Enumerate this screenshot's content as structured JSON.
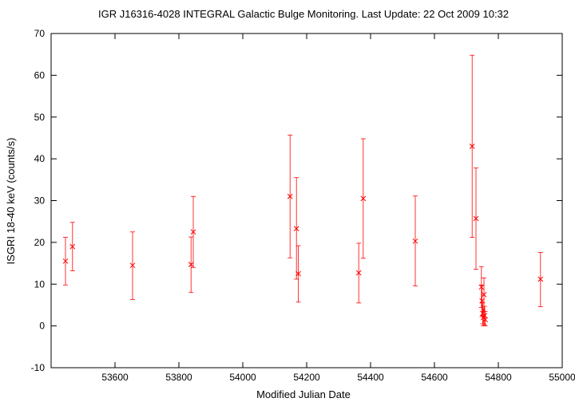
{
  "chart_data": {
    "type": "scatter",
    "title": "IGR J16316-4028   INTEGRAL Galactic Bulge Monitoring.  Last Update: 22 Oct 2009 10:32",
    "xlabel": "Modified Julian Date",
    "ylabel": "ISGRI 18-40 keV (counts/s)",
    "xlim": [
      53400,
      55000
    ],
    "ylim": [
      -10,
      70
    ],
    "xticks": [
      53600,
      53800,
      54000,
      54200,
      54400,
      54600,
      54800,
      55000
    ],
    "yticks": [
      -10,
      0,
      10,
      20,
      30,
      40,
      50,
      60,
      70
    ],
    "grid": false,
    "marker": "x",
    "color": "#ff0000",
    "points": [
      {
        "x": 53445,
        "y": 15.5,
        "ylo": 9.8,
        "yhi": 21.2
      },
      {
        "x": 53467,
        "y": 19.0,
        "ylo": 13.2,
        "yhi": 24.8
      },
      {
        "x": 53655,
        "y": 14.5,
        "ylo": 6.3,
        "yhi": 22.5
      },
      {
        "x": 53838,
        "y": 14.7,
        "ylo": 8.0,
        "yhi": 21.3
      },
      {
        "x": 53845,
        "y": 22.5,
        "ylo": 14.0,
        "yhi": 31.0
      },
      {
        "x": 54148,
        "y": 31.0,
        "ylo": 16.3,
        "yhi": 45.7
      },
      {
        "x": 54168,
        "y": 23.3,
        "ylo": 11.2,
        "yhi": 35.5
      },
      {
        "x": 54174,
        "y": 12.5,
        "ylo": 5.7,
        "yhi": 19.2
      },
      {
        "x": 54363,
        "y": 12.7,
        "ylo": 5.5,
        "yhi": 19.8
      },
      {
        "x": 54377,
        "y": 30.5,
        "ylo": 16.2,
        "yhi": 44.8
      },
      {
        "x": 54540,
        "y": 20.3,
        "ylo": 9.6,
        "yhi": 31.1
      },
      {
        "x": 54718,
        "y": 43.0,
        "ylo": 21.2,
        "yhi": 64.8
      },
      {
        "x": 54730,
        "y": 25.7,
        "ylo": 13.6,
        "yhi": 37.8
      },
      {
        "x": 54747,
        "y": 9.3,
        "ylo": 4.4,
        "yhi": 14.2
      },
      {
        "x": 54749,
        "y": 6.0,
        "ylo": 2.2,
        "yhi": 9.8
      },
      {
        "x": 54751,
        "y": 3.0,
        "ylo": 0.5,
        "yhi": 5.5
      },
      {
        "x": 54753,
        "y": 2.0,
        "ylo": 0.0,
        "yhi": 4.0
      },
      {
        "x": 54755,
        "y": 7.5,
        "ylo": 3.5,
        "yhi": 11.5
      },
      {
        "x": 54757,
        "y": 2.5,
        "ylo": 0.3,
        "yhi": 4.7
      },
      {
        "x": 54759,
        "y": 1.5,
        "ylo": 0.0,
        "yhi": 3.5
      },
      {
        "x": 54932,
        "y": 11.2,
        "ylo": 4.6,
        "yhi": 17.6
      }
    ]
  }
}
